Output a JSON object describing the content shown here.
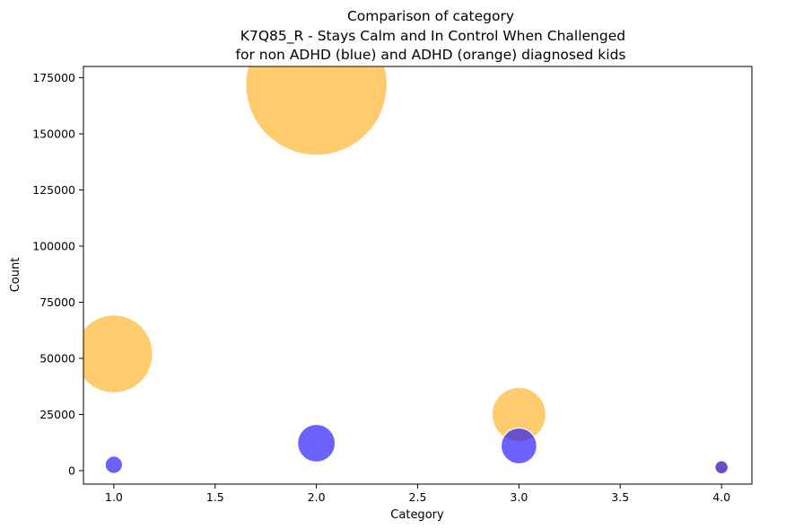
{
  "chart_data": {
    "type": "scatter",
    "title_lines": [
      "Comparison of category",
      " K7Q85_R - Stays Calm and In Control When Challenged",
      "for non ADHD (blue) and ADHD (orange) diagnosed kids"
    ],
    "xlabel": "Category",
    "ylabel": "Count",
    "xlim": [
      0.85,
      4.15
    ],
    "ylim": [
      -6000,
      180000
    ],
    "xticks": [
      1.0,
      1.5,
      2.0,
      2.5,
      3.0,
      3.5,
      4.0
    ],
    "xtick_labels": [
      "1.0",
      "1.5",
      "2.0",
      "2.5",
      "3.0",
      "3.5",
      "4.0"
    ],
    "yticks": [
      0,
      25000,
      50000,
      75000,
      100000,
      125000,
      150000,
      175000
    ],
    "ytick_labels": [
      "0",
      "25000",
      "50000",
      "75000",
      "100000",
      "125000",
      "150000",
      "175000"
    ],
    "grid": false,
    "bubble_size_encodes": "count",
    "series": [
      {
        "color": "#ffb52e",
        "alpha": 0.7,
        "points": [
          {
            "x": 1,
            "y": 52000
          },
          {
            "x": 2,
            "y": 172000
          },
          {
            "x": 3,
            "y": 25000
          },
          {
            "x": 4,
            "y": 1800
          }
        ]
      },
      {
        "color": "#1a0dff",
        "alpha": 0.65,
        "points": [
          {
            "x": 1,
            "y": 2600
          },
          {
            "x": 2,
            "y": 12200
          },
          {
            "x": 3,
            "y": 11000
          },
          {
            "x": 4,
            "y": 1500
          }
        ]
      }
    ]
  }
}
